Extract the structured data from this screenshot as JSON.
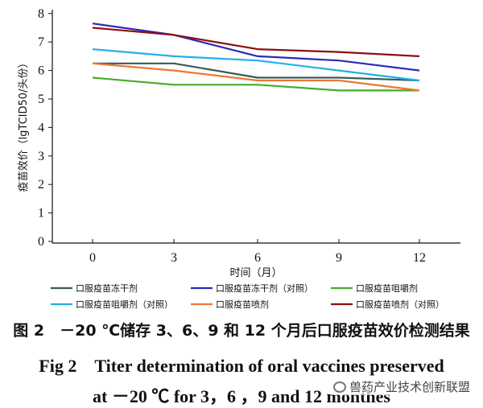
{
  "chart_data": {
    "type": "line",
    "title": "",
    "xlabel": "时间（月）",
    "ylabel": "疫苗效价（lgTCID50/头份）",
    "x": [
      0,
      3,
      6,
      9,
      12
    ],
    "x_tick_labels": [
      "0",
      "3",
      "6",
      "9",
      "12"
    ],
    "ylim": [
      0,
      8
    ],
    "y_ticks": [
      0,
      1,
      2,
      3,
      4,
      5,
      6,
      7,
      8
    ],
    "grid": false,
    "legend_position": "bottom",
    "series": [
      {
        "name": "口服疫苗冻干剂",
        "color": "#3a5a5a",
        "values": [
          6.25,
          6.25,
          5.75,
          5.75,
          5.65
        ]
      },
      {
        "name": "口服疫苗冻干剂（对照）",
        "color": "#2b2bb5",
        "values": [
          7.65,
          7.25,
          6.5,
          6.35,
          6.0
        ]
      },
      {
        "name": "口服疫苗咀嚼剂",
        "color": "#4aaa2a",
        "values": [
          5.75,
          5.5,
          5.5,
          5.3,
          5.3
        ]
      },
      {
        "name": "口服疫苗咀嚼剂（对照）",
        "color": "#22b0e8",
        "values": [
          6.75,
          6.5,
          6.35,
          6.0,
          5.65
        ]
      },
      {
        "name": "口服疫苗喷剂",
        "color": "#ee7733",
        "values": [
          6.25,
          6.0,
          5.65,
          5.65,
          5.3
        ]
      },
      {
        "name": "口服疫苗喷剂（对照）",
        "color": "#8a1010",
        "values": [
          7.5,
          7.25,
          6.75,
          6.65,
          6.5
        ]
      }
    ]
  },
  "captions": {
    "cn": "图 2　－20 ℃储存 3、6、9 和 12 个月后口服疫苗效价检测结果",
    "en_line1": "Fig 2　Titer determination of oral vaccines preserved",
    "en_line2": "at －20 ℃ for 3，6 ，9 and 12 monthes"
  },
  "watermark": {
    "text": "兽药产业技术创新联盟",
    "icon": "wechat-icon"
  }
}
